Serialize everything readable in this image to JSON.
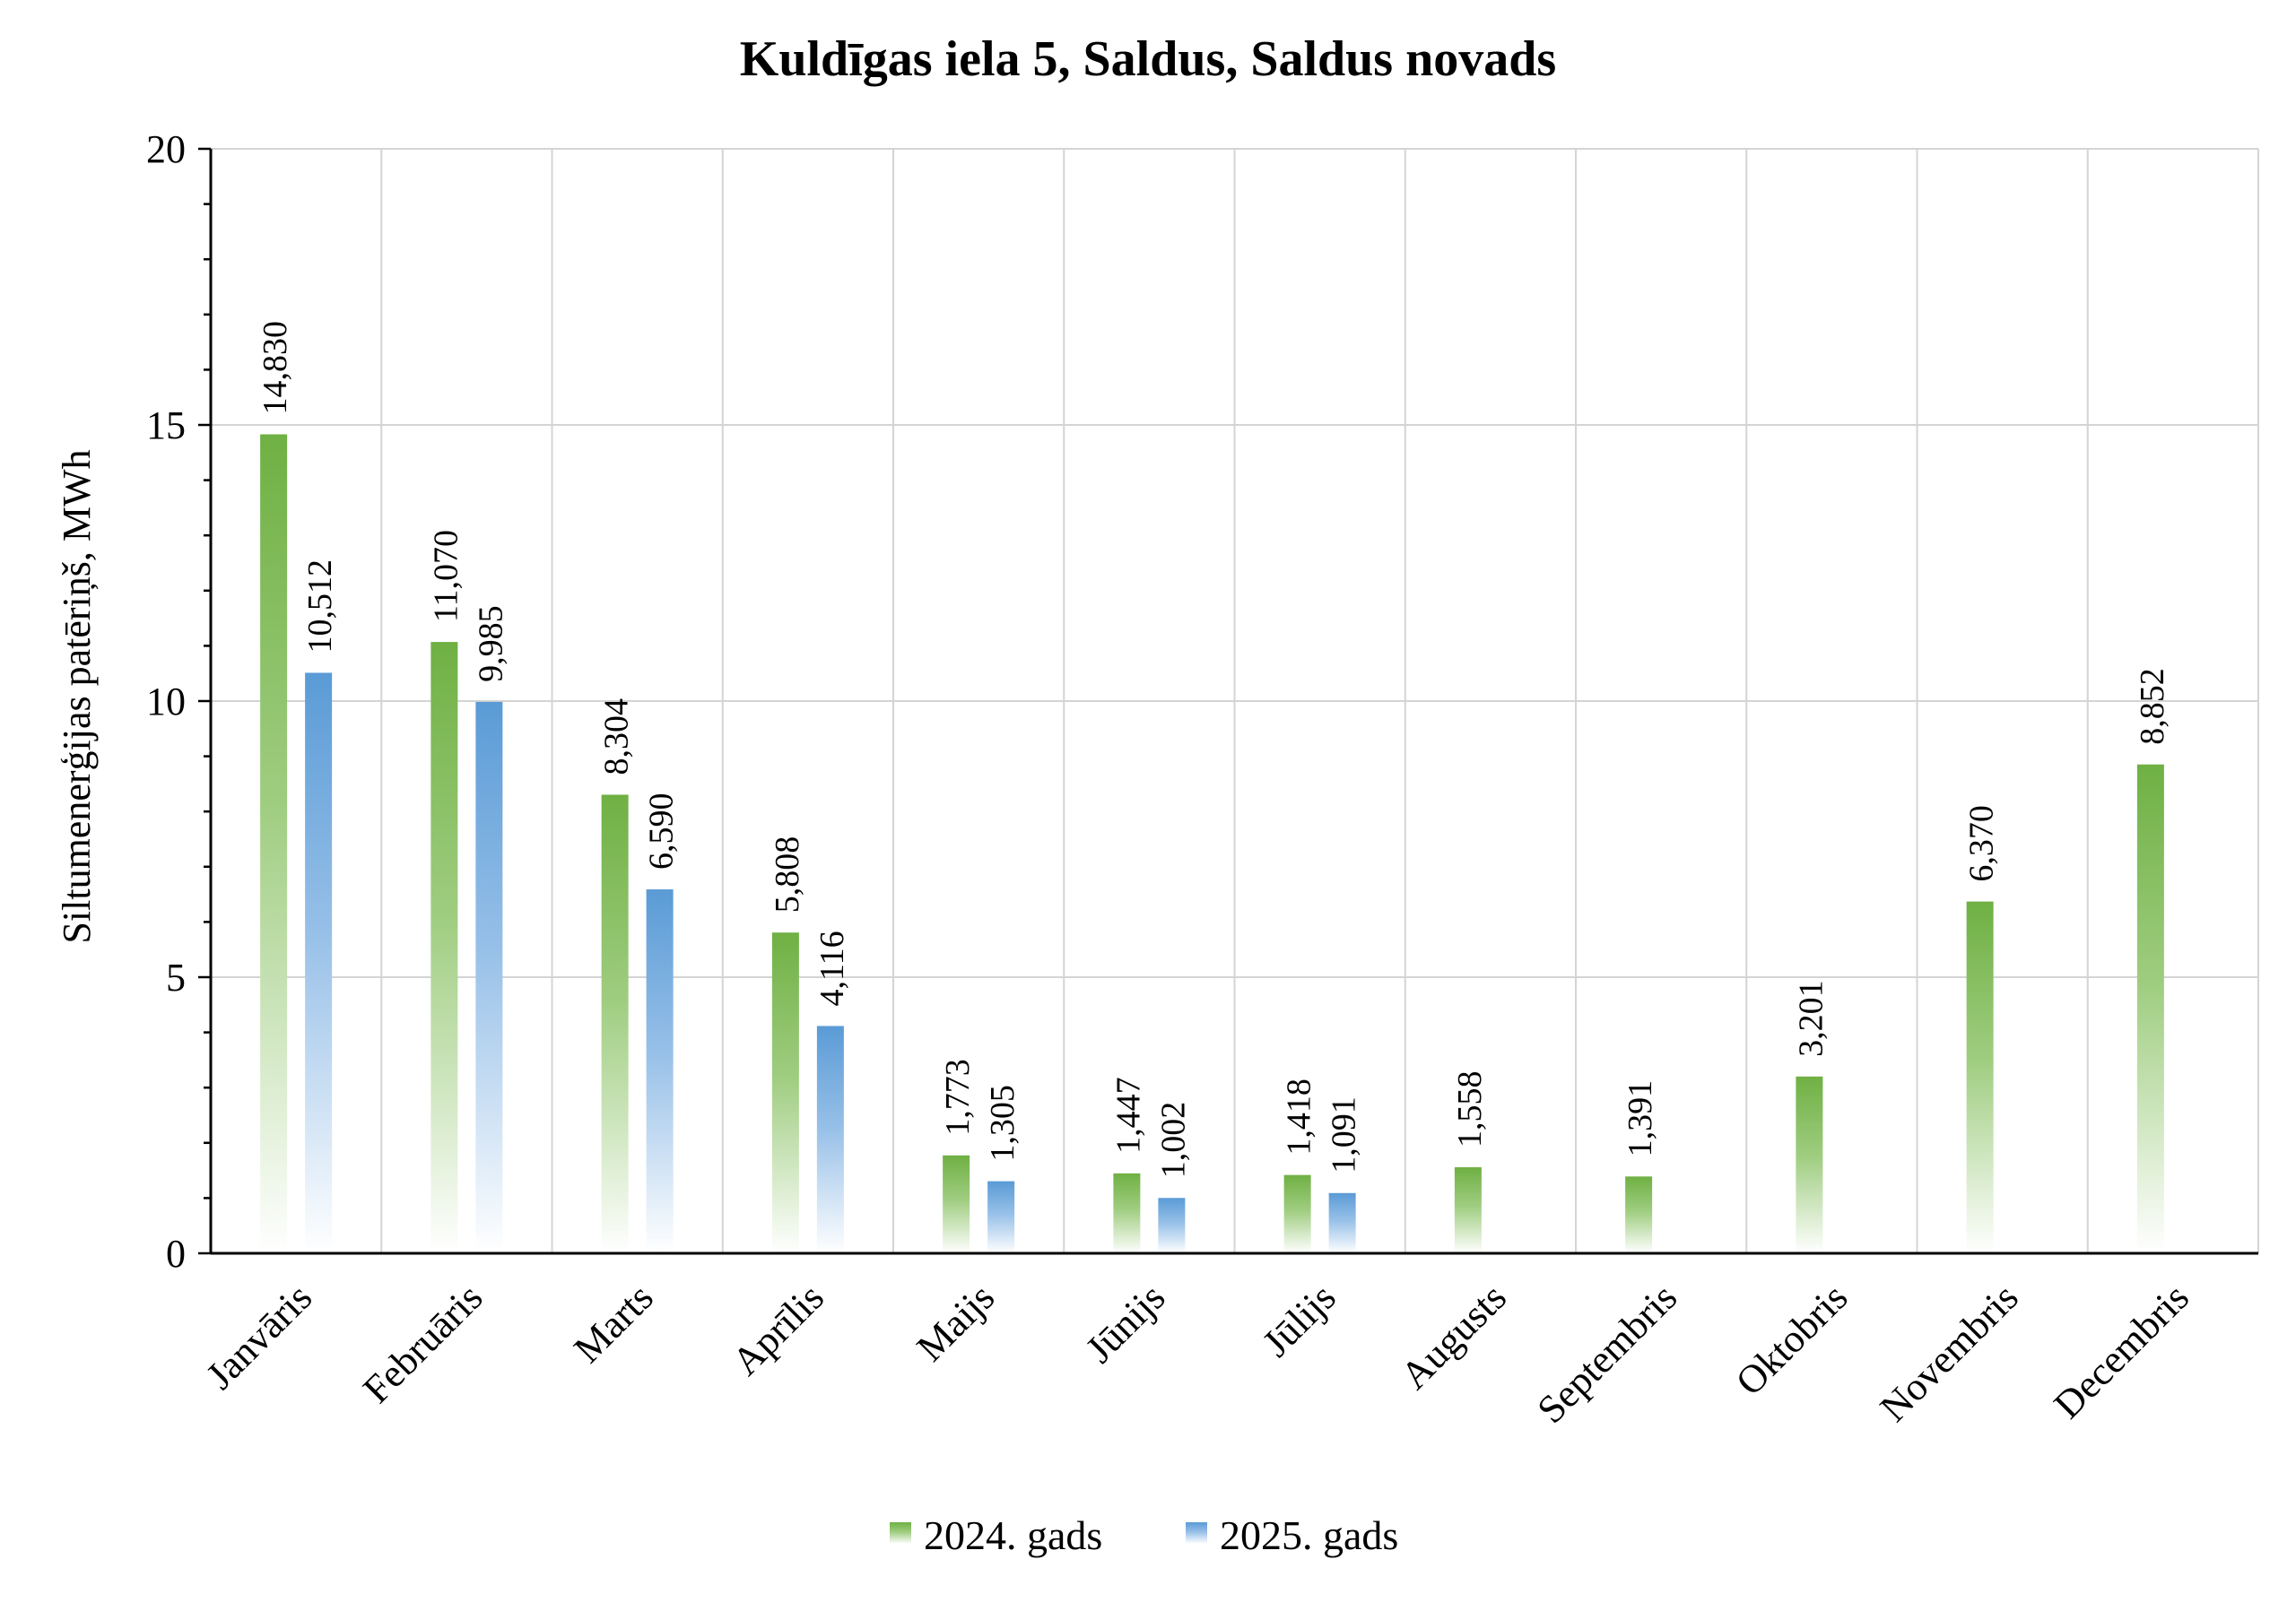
{
  "chart_data": {
    "type": "bar",
    "title": "Kuldīgas iela 5, Saldus, Saldus novads",
    "ylabel": "Siltumenerģijas patēriņš, MWh",
    "xlabel": "",
    "ylim": [
      0,
      20
    ],
    "yticks": [
      0,
      5,
      10,
      15,
      20
    ],
    "grid": true,
    "legend_position": "bottom",
    "categories": [
      "Janvāris",
      "Februāris",
      "Marts",
      "Aprīlis",
      "Maijs",
      "Jūnijs",
      "Jūlijs",
      "Augusts",
      "Septembris",
      "Oktobris",
      "Novembris",
      "Decembris"
    ],
    "series": [
      {
        "name": "2024. gads",
        "color": "#70ad47",
        "values": [
          14.83,
          11.07,
          8.304,
          5.808,
          1.773,
          1.447,
          1.418,
          1.558,
          1.391,
          3.201,
          6.37,
          8.852
        ],
        "labels": [
          "14,830",
          "11,070",
          "8,304",
          "5,808",
          "1,773",
          "1,447",
          "1,418",
          "1,558",
          "1,391",
          "3,201",
          "6,370",
          "8,852"
        ]
      },
      {
        "name": "2025. gads",
        "color": "#5b9bd5",
        "values": [
          10.512,
          9.985,
          6.59,
          4.116,
          1.305,
          1.002,
          1.091,
          null,
          null,
          null,
          null,
          null
        ],
        "labels": [
          "10,512",
          "9,985",
          "6,590",
          "4,116",
          "1,305",
          "1,002",
          "1,091",
          "",
          "",
          "",
          "",
          ""
        ]
      }
    ]
  }
}
